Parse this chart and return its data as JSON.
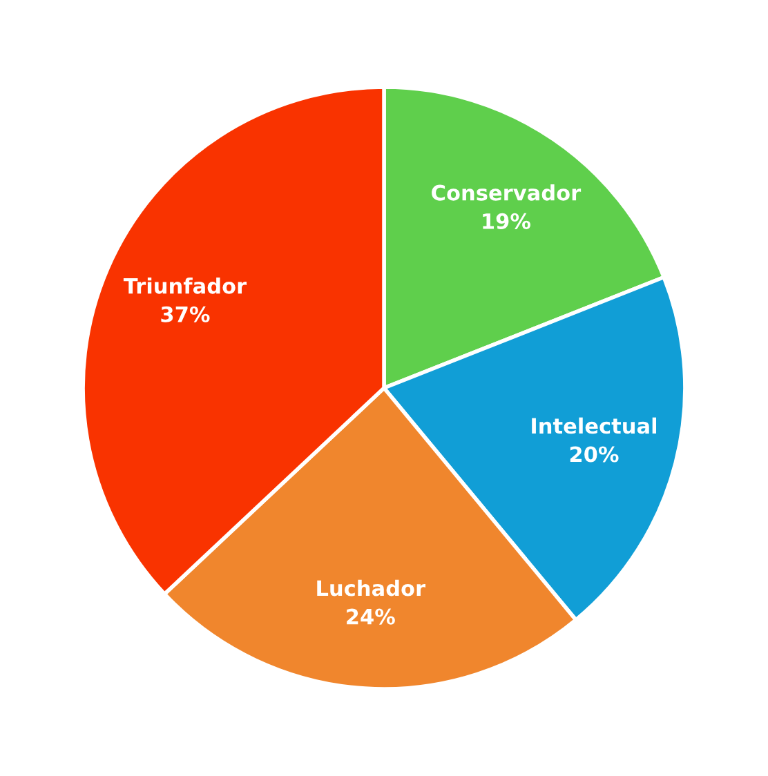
{
  "chart_data": {
    "type": "pie",
    "categories": [
      "Conservador",
      "Intelectual",
      "Luchador",
      "Triunfador"
    ],
    "values": [
      19,
      20,
      24,
      37
    ],
    "colors": [
      "#5fcf4c",
      "#119ed6",
      "#f0862d",
      "#f93300"
    ],
    "value_labels": [
      "19%",
      "20%",
      "24%",
      "37%"
    ]
  }
}
